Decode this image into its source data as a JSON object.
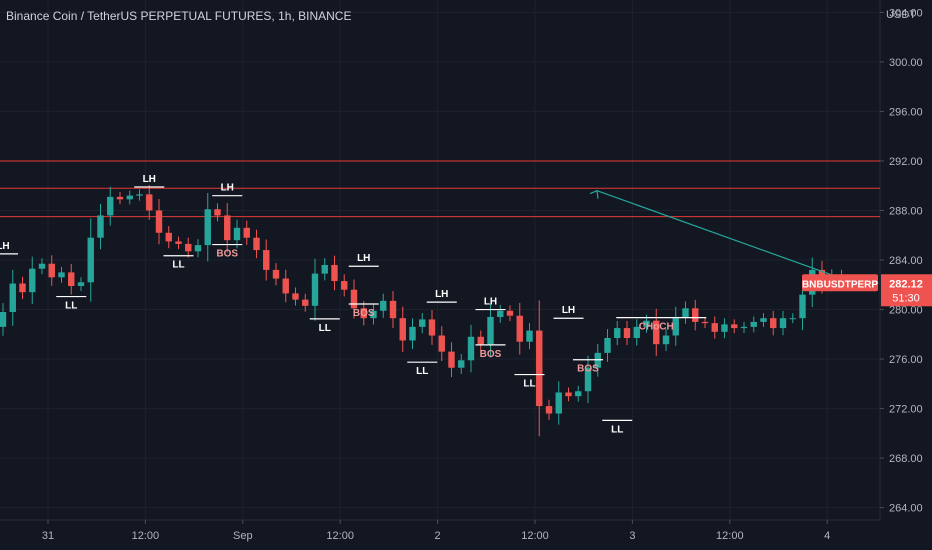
{
  "header": {
    "title": "Binance Coin / TetherUS PERPETUAL FUTURES, 1h, BINANCE",
    "unit": "USDT"
  },
  "price_tag": {
    "symbol": "BNBUSDTPERP",
    "price": "282.12",
    "countdown": "51:30"
  },
  "colors": {
    "background": "#131722",
    "up": "#26a69a",
    "down": "#ef5350",
    "zone_line": "#e53935",
    "arrow": "#26a69a"
  },
  "chart_data": {
    "type": "candlestick",
    "title": "Binance Coin / TetherUS PERPETUAL FUTURES, 1h, BINANCE",
    "ylabel": "USDT",
    "ylim": [
      263,
      305
    ],
    "y_ticks": [
      "264.00",
      "268.00",
      "272.00",
      "276.00",
      "280.00",
      "284.00",
      "288.00",
      "292.00",
      "296.00",
      "300.00",
      "304.00"
    ],
    "x_ticks": [
      "31",
      "12:00",
      "Sep",
      "12:00",
      "2",
      "12:00",
      "3",
      "12:00",
      "4"
    ],
    "current_price": 282.12,
    "horizontal_levels": [
      292.0,
      289.8,
      287.5
    ],
    "closes": [
      279.8,
      282.1,
      281.4,
      283.3,
      283.7,
      282.6,
      283.0,
      281.9,
      282.2,
      285.8,
      287.6,
      289.1,
      288.9,
      289.2,
      289.3,
      288.0,
      286.2,
      285.5,
      285.3,
      284.7,
      285.2,
      288.1,
      287.6,
      285.6,
      286.6,
      285.8,
      284.8,
      283.2,
      282.5,
      281.3,
      280.8,
      280.3,
      282.9,
      283.6,
      282.3,
      281.6,
      280.1,
      279.3,
      279.9,
      280.7,
      279.3,
      277.5,
      278.6,
      279.2,
      277.9,
      276.6,
      275.3,
      275.9,
      277.8,
      277.2,
      279.4,
      279.9,
      279.5,
      277.4,
      278.3,
      272.2,
      271.6,
      273.3,
      273.0,
      273.4,
      275.3,
      276.5,
      277.7,
      278.5,
      277.7,
      278.6,
      279.1,
      277.2,
      277.9,
      279.4,
      280.1,
      279.0,
      278.9,
      278.2,
      278.8,
      278.5,
      278.6,
      279.0,
      279.3,
      278.5,
      279.3,
      279.3,
      281.2,
      283.2,
      282.0,
      282.7,
      282.12
    ],
    "annotations": [
      {
        "text": "LH",
        "x_index": 0,
        "price": 284.9
      },
      {
        "text": "LL",
        "x_index": 7,
        "price": 280.4
      },
      {
        "text": "LH",
        "x_index": 15,
        "price": 290.3
      },
      {
        "text": "LL",
        "x_index": 18,
        "price": 283.7
      },
      {
        "text": "LH",
        "x_index": 23,
        "price": 289.6
      },
      {
        "text": "BOS",
        "x_index": 23,
        "price": 284.6
      },
      {
        "text": "LH",
        "x_index": 37,
        "price": 283.9
      },
      {
        "text": "BOS",
        "x_index": 37,
        "price": 279.8
      },
      {
        "text": "LL",
        "x_index": 33,
        "price": 278.6
      },
      {
        "text": "LH",
        "x_index": 45,
        "price": 281.0
      },
      {
        "text": "LL",
        "x_index": 43,
        "price": 275.1
      },
      {
        "text": "LH",
        "x_index": 50,
        "price": 280.4
      },
      {
        "text": "BOS",
        "x_index": 50,
        "price": 276.5
      },
      {
        "text": "LL",
        "x_index": 54,
        "price": 274.1
      },
      {
        "text": "LH",
        "x_index": 58,
        "price": 279.7
      },
      {
        "text": "BOS",
        "x_index": 60,
        "price": 275.3
      },
      {
        "text": "CHoCH",
        "x_index": 67,
        "price": 278.7
      },
      {
        "text": "LL",
        "x_index": 63,
        "price": 270.4
      }
    ]
  }
}
